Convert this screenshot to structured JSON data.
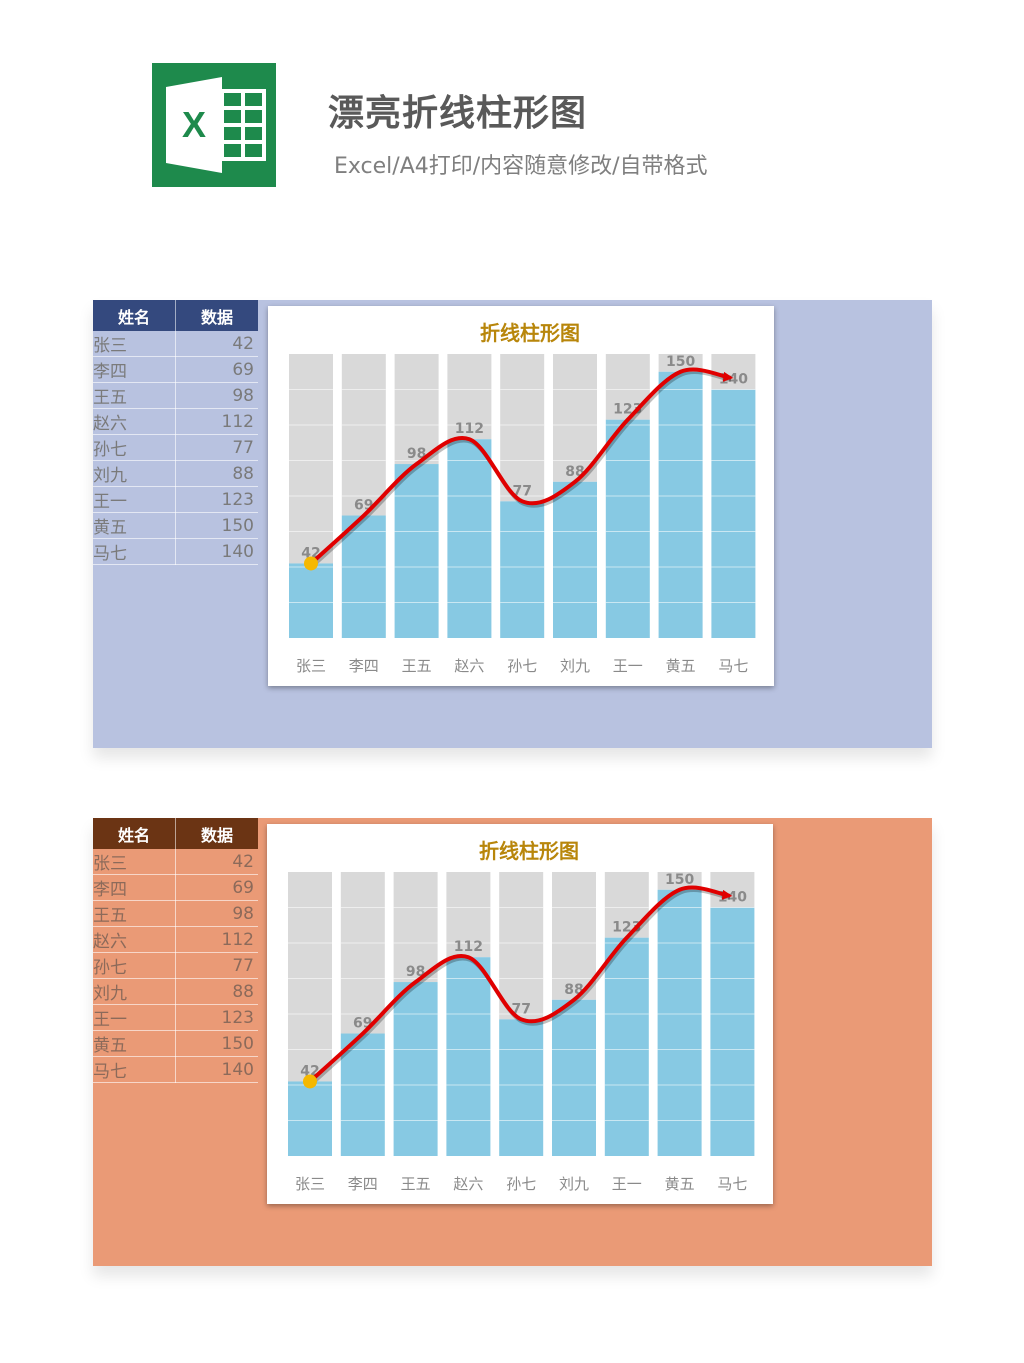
{
  "header": {
    "title": "漂亮折线柱形图",
    "subtitle": "Excel/A4打印/内容随意修改/自带格式",
    "logo_letter": "X",
    "logo_icon": "excel-icon"
  },
  "table": {
    "headers": [
      "姓名",
      "数据"
    ],
    "rows": [
      {
        "name": "张三",
        "value": "42"
      },
      {
        "name": "李四",
        "value": "69"
      },
      {
        "name": "王五",
        "value": "98"
      },
      {
        "name": "赵六",
        "value": "112"
      },
      {
        "name": "孙七",
        "value": "77"
      },
      {
        "name": "刘九",
        "value": "88"
      },
      {
        "name": "王一",
        "value": "123"
      },
      {
        "name": "黄五",
        "value": "150"
      },
      {
        "name": "马七",
        "value": "140"
      }
    ]
  },
  "colors": {
    "panel_blue": "#b8c2e0",
    "panel_orange": "#ea9a76",
    "header_blue": "#34497e",
    "header_brown": "#6b3414",
    "bar": "#87c9e3",
    "bar_track": "#d9d9d9",
    "line": "#e00000",
    "marker": "#f5b800",
    "chart_title": "#b8860b"
  },
  "chart_data": [
    {
      "type": "bar",
      "title": "折线柱形图",
      "categories": [
        "张三",
        "李四",
        "王五",
        "赵六",
        "孙七",
        "刘九",
        "王一",
        "黄五",
        "马七"
      ],
      "values": [
        42,
        69,
        98,
        112,
        77,
        88,
        123,
        150,
        140
      ],
      "ylim": [
        0,
        160
      ],
      "grid": false,
      "overlay": "smooth red line through bar tops with arrow at end, yellow start marker"
    },
    {
      "type": "bar",
      "title": "折线柱形图",
      "categories": [
        "张三",
        "李四",
        "王五",
        "赵六",
        "孙七",
        "刘九",
        "王一",
        "黄五",
        "马七"
      ],
      "values": [
        42,
        69,
        98,
        112,
        77,
        88,
        123,
        150,
        140
      ],
      "ylim": [
        0,
        160
      ],
      "grid": false,
      "overlay": "smooth red line through bar tops with arrow at end, yellow start marker"
    }
  ]
}
